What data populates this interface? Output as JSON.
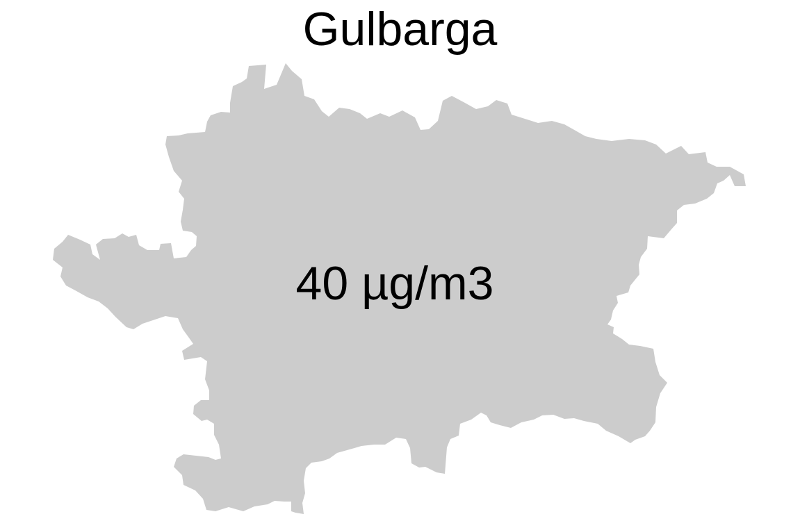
{
  "title": "Gulbarga",
  "map": {
    "region_color": "#cccccc",
    "value_label": "40 µg/m3"
  }
}
